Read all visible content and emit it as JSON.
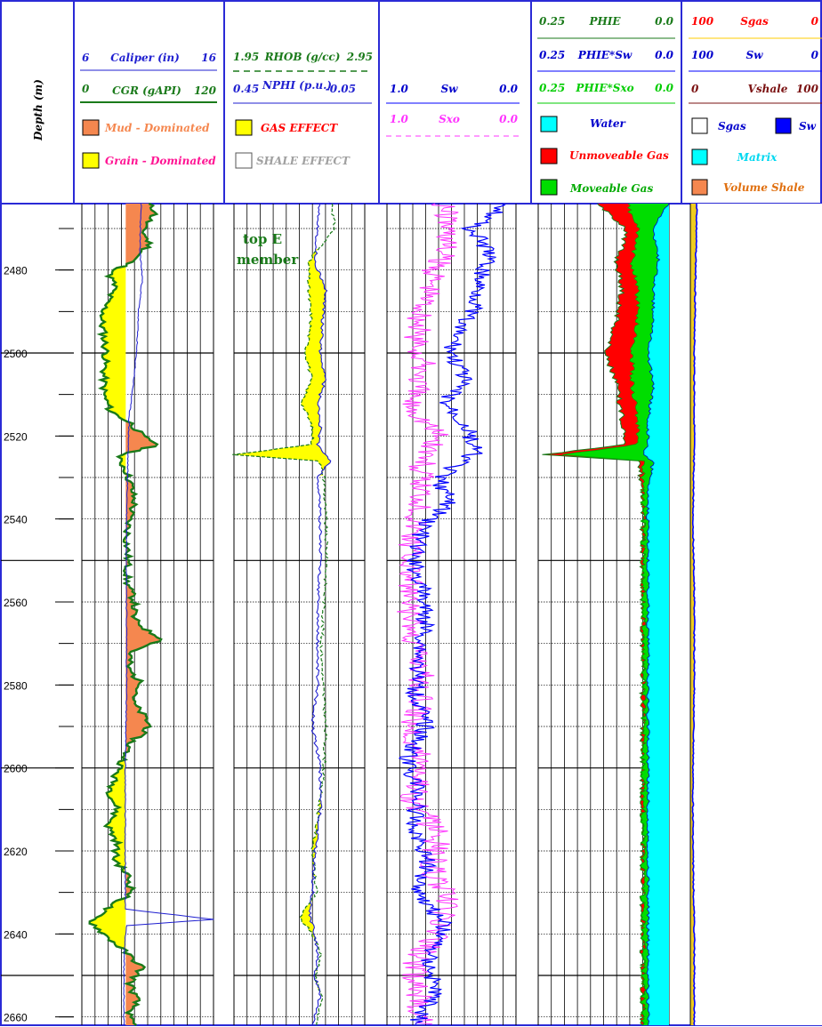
{
  "colors": {
    "border": "#2a2ad6",
    "grid": "#000000",
    "mud": "#f5874f",
    "grain": "#ffff00",
    "cgr": "#1a7a1a",
    "caliper": "#1f1fd0",
    "rhob": "#1a7a1a",
    "nphi": "#1f1fd0",
    "sw": "#0000ff",
    "sxo": "#ff33ff",
    "water": "#00ffff",
    "unmoveable_gas": "#ff0000",
    "moveable_gas": "#00dd00",
    "matrix": "#a8f8fc",
    "vshale_fill": "#d8a020",
    "vshale_line": "#7a1010"
  },
  "header": {
    "depth_title": "Depth (m)",
    "track1": {
      "caliper": {
        "left": "6",
        "name": "Caliper (in)",
        "right": "16"
      },
      "cgr": {
        "left": "0",
        "name": "CGR (gAPI)",
        "right": "120"
      },
      "legend": [
        {
          "label": "Mud - Dominated",
          "color": "#f5874f",
          "text_color": "#f5874f"
        },
        {
          "label": "Grain - Dominated",
          "color": "#ffff00",
          "text_color": "#ff1493"
        }
      ]
    },
    "track2": {
      "rhob": {
        "left": "1.95",
        "name": "RHOB (g/cc)",
        "right": "2.95"
      },
      "nphi": {
        "left": "0.45",
        "name": "NPHI (p.u.)",
        "right": "-0.05"
      },
      "legend": [
        {
          "label": "GAS EFFECT",
          "color": "#ffff00",
          "text_color": "#ff0000"
        },
        {
          "label": "SHALE EFFECT",
          "color": "#ffffff",
          "text_color": "#a0a0a0"
        }
      ]
    },
    "track3": {
      "sw": {
        "left": "1.0",
        "name": "Sw",
        "right": "0.0"
      },
      "sxo": {
        "left": "1.0",
        "name": "Sxo",
        "right": "0.0"
      }
    },
    "track4": {
      "phie": {
        "left": "0.25",
        "name": "PHIE",
        "right": "0.0"
      },
      "phie_sw": {
        "left": "0.25",
        "name": "PHIE*Sw",
        "right": "0.0"
      },
      "phie_sxo": {
        "left": "0.25",
        "name": "PHIE*Sxo",
        "right": "0.0"
      },
      "legend": [
        {
          "label": "Water",
          "color": "#00ffff",
          "text_color": "#0000cc"
        },
        {
          "label": "Unmoveable Gas",
          "color": "#ff0000",
          "text_color": "#ff0000"
        },
        {
          "label": "Moveable Gas",
          "color": "#00dd00",
          "text_color": "#00aa00"
        }
      ]
    },
    "track5": {
      "sgas": {
        "left": "100",
        "name": "Sgas",
        "right": "0"
      },
      "sw": {
        "left": "100",
        "name": "Sw",
        "right": "0"
      },
      "vshale": {
        "left": "0",
        "name": "Vshale",
        "right": "100"
      },
      "legend_sgas": "Sgas",
      "legend_sw": "Sw",
      "legend_matrix": "Matrix",
      "legend_vshale": "Volume Shale"
    }
  },
  "annotation": {
    "line1": "top E",
    "line2": "member"
  },
  "chart_data": {
    "type": "line",
    "title": "",
    "depth_label": "Depth (m)",
    "depth_range": [
      2464,
      2662
    ],
    "depth_ticks": [
      2480,
      2500,
      2520,
      2540,
      2560,
      2580,
      2600,
      2620,
      2640,
      2660
    ],
    "major_grid_depths": [
      2500,
      2550,
      2600,
      2650
    ],
    "tracks": [
      {
        "name": "CGR / Caliper",
        "curves": [
          {
            "name": "Caliper (in)",
            "range": [
              6,
              16
            ],
            "depth": [
              2464,
              2475,
              2482,
              2490,
              2497,
              2505,
              2515,
              2525,
              2540,
              2560,
              2580,
              2600,
              2620,
              2634,
              2636.5,
              2638,
              2645,
              2662
            ],
            "values": [
              10.5,
              10.4,
              10.6,
              10.3,
              10.2,
              10.0,
              9.6,
              9.5,
              9.4,
              9.4,
              9.4,
              9.3,
              9.3,
              9.3,
              16.0,
              9.4,
              9.2,
              9.2
            ]
          },
          {
            "name": "CGR (gAPI)",
            "range": [
              0,
              120
            ],
            "cutoff": 40,
            "depth": [
              2464,
              2466,
              2470,
              2474,
              2478,
              2481,
              2484,
              2488,
              2492,
              2496,
              2500,
              2505,
              2510,
              2514,
              2517,
              2520,
              2522,
              2525,
              2528,
              2532,
              2536,
              2540,
              2545,
              2550,
              2555,
              2560,
              2564,
              2567,
              2569,
              2572,
              2576,
              2580,
              2584,
              2588,
              2590,
              2594,
              2598,
              2602,
              2606,
              2610,
              2614,
              2618,
              2622,
              2626,
              2630,
              2634,
              2637,
              2640,
              2644,
              2648,
              2652,
              2656,
              2660,
              2662
            ],
            "values": [
              60,
              68,
              55,
              62,
              45,
              25,
              30,
              22,
              18,
              20,
              22,
              20,
              20,
              26,
              45,
              55,
              70,
              32,
              40,
              45,
              48,
              43,
              41,
              42,
              41,
              48,
              47,
              60,
              75,
              45,
              42,
              55,
              46,
              58,
              62,
              44,
              38,
              30,
              26,
              32,
              24,
              32,
              30,
              42,
              46,
              22,
              8,
              20,
              38,
              55,
              44,
              50,
              42,
              48
            ]
          }
        ]
      },
      {
        "name": "RHOB / NPHI",
        "curves": [
          {
            "name": "RHOB (g/cc)",
            "range": [
              1.95,
              2.95
            ],
            "depth": [
              2464,
              2470,
              2478,
              2485,
              2492,
              2500,
              2506,
              2512,
              2518,
              2522,
              2524.5,
              2526,
              2530,
              2540,
              2550,
              2560,
              2570,
              2580,
              2590,
              2600,
              2610,
              2620,
              2630,
              2636,
              2640,
              2645,
              2650,
              2655,
              2662
            ],
            "values": [
              2.7,
              2.72,
              2.52,
              2.52,
              2.54,
              2.5,
              2.54,
              2.47,
              2.55,
              2.55,
              1.95,
              2.6,
              2.64,
              2.65,
              2.66,
              2.64,
              2.62,
              2.63,
              2.65,
              2.64,
              2.6,
              2.55,
              2.58,
              2.45,
              2.55,
              2.62,
              2.57,
              2.62,
              2.58
            ]
          },
          {
            "name": "NPHI (p.u.)",
            "range": [
              0.45,
              -0.05
            ],
            "depth": [
              2464,
              2470,
              2478,
              2485,
              2492,
              2500,
              2506,
              2512,
              2518,
              2522,
              2526,
              2530,
              2540,
              2550,
              2560,
              2570,
              2580,
              2590,
              2600,
              2610,
              2620,
              2630,
              2636,
              2640,
              2645,
              2650,
              2655,
              2662
            ],
            "values": [
              0.12,
              0.13,
              0.14,
              0.1,
              0.11,
              0.12,
              0.1,
              0.13,
              0.12,
              0.13,
              0.08,
              0.13,
              0.12,
              0.12,
              0.13,
              0.13,
              0.13,
              0.15,
              0.12,
              0.12,
              0.14,
              0.15,
              0.16,
              0.14,
              0.13,
              0.14,
              0.12,
              0.15
            ]
          }
        ]
      },
      {
        "name": "Sw / Sxo",
        "curves": [
          {
            "name": "Sw",
            "range": [
              1.0,
              0.0
            ],
            "depth": [
              2464,
              2470,
              2476,
              2482,
              2488,
              2494,
              2500,
              2506,
              2512,
              2518,
              2524,
              2530,
              2536,
              2542,
              2550,
              2558,
              2566,
              2574,
              2582,
              2590,
              2598,
              2606,
              2614,
              2622,
              2630,
              2638,
              2646,
              2654,
              2662
            ],
            "values": [
              0.05,
              0.35,
              0.2,
              0.28,
              0.3,
              0.45,
              0.5,
              0.4,
              0.55,
              0.38,
              0.32,
              0.6,
              0.52,
              0.72,
              0.8,
              0.72,
              0.7,
              0.75,
              0.78,
              0.7,
              0.85,
              0.75,
              0.8,
              0.68,
              0.75,
              0.55,
              0.68,
              0.62,
              0.78
            ]
          },
          {
            "name": "Sxo",
            "range": [
              1.0,
              0.0
            ],
            "depth": [
              2464,
              2472,
              2480,
              2488,
              2496,
              2504,
              2512,
              2520,
              2528,
              2536,
              2544,
              2552,
              2560,
              2568,
              2576,
              2584,
              2592,
              2600,
              2608,
              2616,
              2624,
              2632,
              2640,
              2648,
              2656,
              2662
            ],
            "values": [
              0.55,
              0.52,
              0.62,
              0.7,
              0.78,
              0.72,
              0.82,
              0.6,
              0.75,
              0.72,
              0.8,
              0.82,
              0.85,
              0.8,
              0.72,
              0.75,
              0.8,
              0.7,
              0.8,
              0.6,
              0.65,
              0.55,
              0.62,
              0.8,
              0.75,
              0.7
            ]
          }
        ]
      },
      {
        "name": "PHIE / PHIE*Sw / PHIE*Sxo",
        "curves": [
          {
            "name": "PHIE",
            "range": [
              0.25,
              0.0
            ],
            "depth": [
              2464,
              2470,
              2478,
              2485,
              2492,
              2500,
              2508,
              2516,
              2522,
              2524.5,
              2526,
              2532,
              2540,
              2550,
              2560,
              2570,
              2580,
              2590,
              2600,
              2610,
              2620,
              2630,
              2640,
              2650,
              2662
            ],
            "values": [
              0.14,
              0.08,
              0.1,
              0.09,
              0.1,
              0.12,
              0.1,
              0.09,
              0.08,
              0.24,
              0.06,
              0.05,
              0.05,
              0.05,
              0.05,
              0.05,
              0.05,
              0.05,
              0.05,
              0.05,
              0.05,
              0.05,
              0.05,
              0.05,
              0.05
            ]
          },
          {
            "name": "PHIE*Sxo",
            "range": [
              0.25,
              0.0
            ],
            "depth": [
              2464,
              2470,
              2478,
              2485,
              2492,
              2500,
              2508,
              2516,
              2522,
              2524.5,
              2526,
              2532,
              2540,
              2550,
              2560,
              2570,
              2580,
              2590,
              2600,
              2610,
              2620,
              2630,
              2640,
              2650,
              2662
            ],
            "values": [
              0.08,
              0.06,
              0.07,
              0.06,
              0.06,
              0.07,
              0.07,
              0.06,
              0.06,
              0.2,
              0.05,
              0.05,
              0.05,
              0.05,
              0.05,
              0.05,
              0.05,
              0.05,
              0.05,
              0.05,
              0.05,
              0.05,
              0.05,
              0.05,
              0.05
            ]
          },
          {
            "name": "PHIE*Sw",
            "range": [
              0.25,
              0.0
            ],
            "depth": [
              2464,
              2470,
              2478,
              2485,
              2492,
              2500,
              2508,
              2516,
              2522,
              2524.5,
              2526,
              2532,
              2540,
              2550,
              2560,
              2570,
              2580,
              2590,
              2600,
              2610,
              2620,
              2630,
              2640,
              2650,
              2662
            ],
            "values": [
              0.0,
              0.03,
              0.02,
              0.03,
              0.03,
              0.04,
              0.03,
              0.04,
              0.04,
              0.05,
              0.03,
              0.04,
              0.04,
              0.04,
              0.04,
              0.04,
              0.04,
              0.04,
              0.04,
              0.04,
              0.04,
              0.04,
              0.04,
              0.04,
              0.04
            ]
          }
        ]
      },
      {
        "name": "Sgas / Sw / Vshale",
        "curves": [
          {
            "name": "Vshale",
            "range": [
              0,
              100
            ],
            "depth": [
              2464,
              2470,
              2478,
              2486,
              2494,
              2502,
              2510,
              2516,
              2520,
              2522,
              2526,
              2534,
              2542,
              2550,
              2558,
              2566,
              2570,
              2576,
              2584,
              2590,
              2600,
              2610,
              2620,
              2630,
              2640,
              2650,
              2662
            ],
            "values": [
              30,
              35,
              18,
              15,
              12,
              15,
              14,
              20,
              32,
              48,
              20,
              28,
              24,
              26,
              28,
              35,
              50,
              30,
              38,
              50,
              25,
              18,
              22,
              20,
              18,
              35,
              30
            ]
          },
          {
            "name": "Sw",
            "range": [
              100,
              0
            ],
            "depth": [
              2464,
              2480,
              2500,
              2520,
              2540,
              2560,
              2580,
              2600,
              2620,
              2640,
              2662
            ],
            "values": [
              95,
              96,
              97,
              97,
              98,
              97,
              97,
              98,
              98,
              97,
              97
            ]
          }
        ]
      }
    ]
  }
}
